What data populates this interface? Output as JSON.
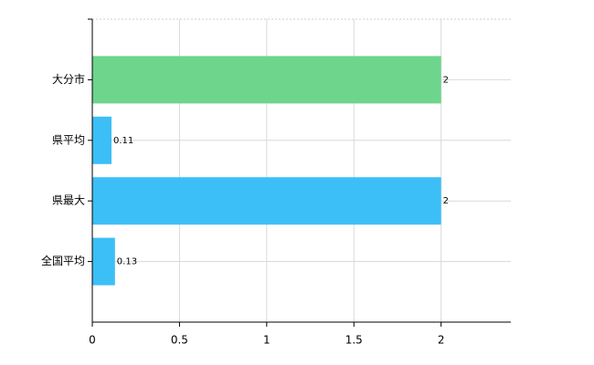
{
  "chart_data": {
    "type": "bar",
    "orientation": "horizontal",
    "categories": [
      "大分市",
      "県平均",
      "県最大",
      "全国平均"
    ],
    "values": [
      2,
      0.11,
      2,
      0.13
    ],
    "colors": [
      "#6dd58c",
      "#3cbff6",
      "#3cbff6",
      "#3cbff6"
    ],
    "xlim": [
      0,
      2.4
    ],
    "xticks": [
      0,
      0.5,
      1,
      1.5,
      2
    ],
    "grid": true
  }
}
